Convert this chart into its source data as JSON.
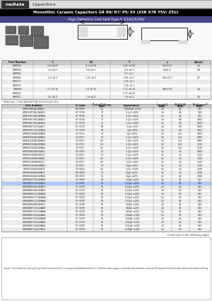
{
  "title": "Monolithic Ceramic Capacitors GR R6/ R7/ P5/ E4 (X5R X7R Y5V/ Z5U)",
  "subtitle": "High Dielectric Constant Type 6.3/16/25/50V",
  "brand": "muRata",
  "brand_label": "Capacitors",
  "dim_table_headers": [
    "Part Number",
    "L",
    "W",
    "T",
    "e",
    "d(mm)"
  ],
  "dim_table_data": [
    [
      "GRM033",
      "1.0 ±0.05",
      "0.5 ±0.05",
      "0.35 ±0.05",
      "0.15(0.3)",
      "0.4"
    ],
    [
      "GRM036",
      "1.6 ±0.1",
      "0.8 ±0.1",
      "0.8 ±0.1",
      "0.3(0.5)",
      "0.8"
    ],
    [
      "GRM040",
      "",
      "",
      "0.5 ±0.1",
      "",
      ""
    ],
    [
      "GRM042",
      "2.0 ±0.1",
      "1.25 ±0.1",
      "0.85 ±0.1",
      "0.5(±0.7)",
      "0.7"
    ],
    [
      "GRM155",
      "",
      "",
      "1.25 ±0.1",
      "",
      ""
    ],
    [
      "GRM185",
      "",
      "",
      "1.25 ±0.1",
      "",
      ""
    ],
    [
      "GRM188",
      "3.2 ±0.15",
      "1.6 ±0.15",
      "1.15 ±0.15",
      "0.8(±0.8)",
      "1.6"
    ],
    [
      "GRM219",
      "",
      "",
      "1.75 ±0.15",
      "",
      ""
    ],
    [
      "GRM21C",
      "4.5 ±0.2",
      "1.6 ±0.2",
      "1.6 ±0.2",
      "",
      "1.6"
    ]
  ],
  "dim_note": "* Bulk Case  1.6x0.8[0.8x0.8][1.0x0.5(0.4x0.4T)]",
  "main_table_headers": [
    "Part Number",
    "TC Code",
    "Rated Voltage\n(Vdc)",
    "Capacitance*",
    "Length L\n(mm)",
    "Width W\n(mm)",
    "Thickness T\n(mm)"
  ],
  "main_table_data": [
    [
      "GRM033R60J104KA01",
      "R6 (X5R)",
      "6.3",
      "100000pF ±10%",
      "1.0",
      "0.5",
      "0.50"
    ],
    [
      "GRM033R71A104KA01",
      "R7 (X7R)",
      "10",
      "0.1µF ±10%",
      "1.0",
      "0.5",
      "0.50"
    ],
    [
      "GRM033R71A104MA01",
      "R7 (X7R)",
      "10",
      "0.1µF ±20%",
      "1.0",
      "0.5",
      "0.50"
    ],
    [
      "GRM036R71A104KA01",
      "R7 (X7R)",
      "10",
      "0.1µF ±10%",
      "1.6",
      "0.8",
      "0.800"
    ],
    [
      "GRM036R71E104KA01",
      "R7 (X7R)",
      "25",
      "0.1µF ±10%",
      "1.6",
      "0.8",
      "0.800"
    ],
    [
      "GRM036R71H104JA01",
      "R7 (X7R)",
      "50",
      "0.1µF ±5%",
      "1.6",
      "0.8",
      "0.800"
    ],
    [
      "GRM036R71H104KA01",
      "R7 (X7R)",
      "50",
      "1pF ±10%",
      "1.6",
      "0.8",
      "0.800"
    ],
    [
      "GRM040C81A105MA01",
      "C8 (Y5V)",
      "10",
      "1µF ±20%",
      "2.0",
      "1.25",
      "0.800"
    ],
    [
      "GRM040C81A105MA11",
      "C8 (Y5V)",
      "10",
      "3.3µF ±20%",
      "2.0",
      "1.25",
      "0.900"
    ],
    [
      "GRM042C81A105MA01",
      "C8 (Y5V)",
      "6.3",
      "1.0µF ±20%",
      "2.0",
      "1.25",
      "0.900"
    ],
    [
      "GRM042C81A225MA01",
      "C8 (Y5V)",
      "6.3",
      "3.3µF ±20%",
      "2.0",
      "1.25",
      "1.250"
    ],
    [
      "GRM042C81A335MA11",
      "C8 (Y5V)",
      "6.3",
      "4.7µF ±20%",
      "2.0",
      "1.25",
      "1.250"
    ],
    [
      "GRM155R61A105KA01",
      "R6 (X5R)",
      "10",
      "2.2µF ±10%",
      "3.2",
      "1.6",
      "0.900"
    ],
    [
      "GRM155C81A225KC13",
      "C8 (Y5V)",
      "10",
      "3.3µF ±10%",
      "3.2",
      "1.6",
      "1.300"
    ],
    [
      "GRM155C81A475KA01",
      "C8 (Y5V)",
      "6.3",
      "4.7µF ±10%",
      "3.2",
      "1.6",
      "1.500"
    ],
    [
      "GRM155C81A685KC11",
      "C8 (Y5V)",
      "6.3",
      "4.7µF ±10%",
      "3.2",
      "1.6",
      "1.450"
    ],
    [
      "GRM155C81A106MA01",
      "C8 (Y5V)",
      "10",
      "10µF ±10%",
      "3.2",
      "1.6",
      "1.500"
    ],
    [
      "GRM155C80J106ZE01",
      "C8 (Z5U)",
      "6.3",
      "4.7µF ±20%",
      "3.2",
      "1.6",
      "1.500"
    ],
    [
      "GRM185R60J106MA01",
      "R6 (X5R)",
      "10",
      "10µF ±20%",
      "3.2",
      "1.6",
      "1.500"
    ],
    [
      "GRM185R61A106MA01",
      "R6 (X5R)",
      "10",
      "10µF ±20%",
      "4.7",
      "0.5",
      "2.500"
    ],
    [
      "GRM185R71H103KA88",
      "R7 (X7R)",
      "50",
      "220pF ±10%",
      "1.6",
      "0.5",
      "0.25"
    ],
    [
      "GRM188F51H104ZA01",
      "F5 (X7R)",
      "50",
      "0.22µF ±10%",
      "1.0",
      "0.5",
      "0.50"
    ],
    [
      "GRM188R61A106MA73",
      "R7 (X7R)",
      "50",
      "0.22µF ±10%",
      "1.0",
      "0.5",
      "0.50"
    ],
    [
      "GRM188R61A226MA01",
      "R7 (X7R)",
      "50",
      "0.22µF ±10%",
      "1.0",
      "0.5",
      "0.50"
    ],
    [
      "GRM188R61C106KA88",
      "R7 (X7R)",
      "50",
      "0.33µF ±10%",
      "1.0",
      "0.5",
      "0.50"
    ],
    [
      "GRM188R61C106MA88",
      "R7 (X7R)",
      "50",
      "0.47µF ±10%",
      "1.0",
      "0.5",
      "0.50"
    ],
    [
      "GRM188R61C226MA88",
      "R7 (X7R)",
      "50",
      "0.47µF ±10%",
      "1.0",
      "0.5",
      "0.50"
    ],
    [
      "GRM188R62A106KA01",
      "R7 (X7R)",
      "50",
      "560pF ±10%",
      "1.0",
      "0.5",
      "0.50"
    ],
    [
      "GRM188R71H102KA88",
      "R7 (X7R)",
      "50",
      "680pF ±10%",
      "1.0",
      "0.5",
      "0.50"
    ],
    [
      "GRM188R71H102MA88",
      "R7 (X7R)",
      "50",
      "680pF ±20%",
      "1.0",
      "0.5",
      "0.50"
    ],
    [
      "GRM188R71H202KA88",
      "R7 (X7R)",
      "50",
      "1000pF ±10%",
      "1.0",
      "0.5",
      "0.50"
    ],
    [
      "GRM188R71H202MA88",
      "R7 (X7R)",
      "50",
      "1000pF ±20%",
      "1.0",
      "0.5",
      "0.50"
    ],
    [
      "GRM188R71H332KA88",
      "R7 (X7R)",
      "50",
      "1500pF ±10%",
      "1.0",
      "0.5",
      "0.50"
    ],
    [
      "GRM188R71H402MA01",
      "R7 (X7R)",
      "50",
      "1500pF ±20%",
      "1.0",
      "0.5",
      "0.50"
    ],
    [
      "GRM188R71H472KA01",
      "R7 (X7R)",
      "50",
      "2200pF ±10%",
      "1.0",
      "0.5",
      "0.50"
    ]
  ],
  "footer_note": "Continued on the following pages",
  "disclaimer": "Caution : This catalog has only typical specifications because there is no space for detailed specifications. Therefore, please approve our product specifications or transact the approval sheet for product specification before ordering.",
  "highlight_row": 21,
  "bg_color": "#ffffff",
  "header_bg": "#cccccc",
  "alt_row_bg": "#eeeeee",
  "highlight_bg": "#aaccff",
  "table_border": "#888888",
  "title_bg": "#000000",
  "title_fg": "#ffffff",
  "subtitle_bg": "#444488",
  "subtitle_fg": "#ffffff",
  "top_bar_bg": "#dddddd",
  "brand_box_bg": "#333333"
}
